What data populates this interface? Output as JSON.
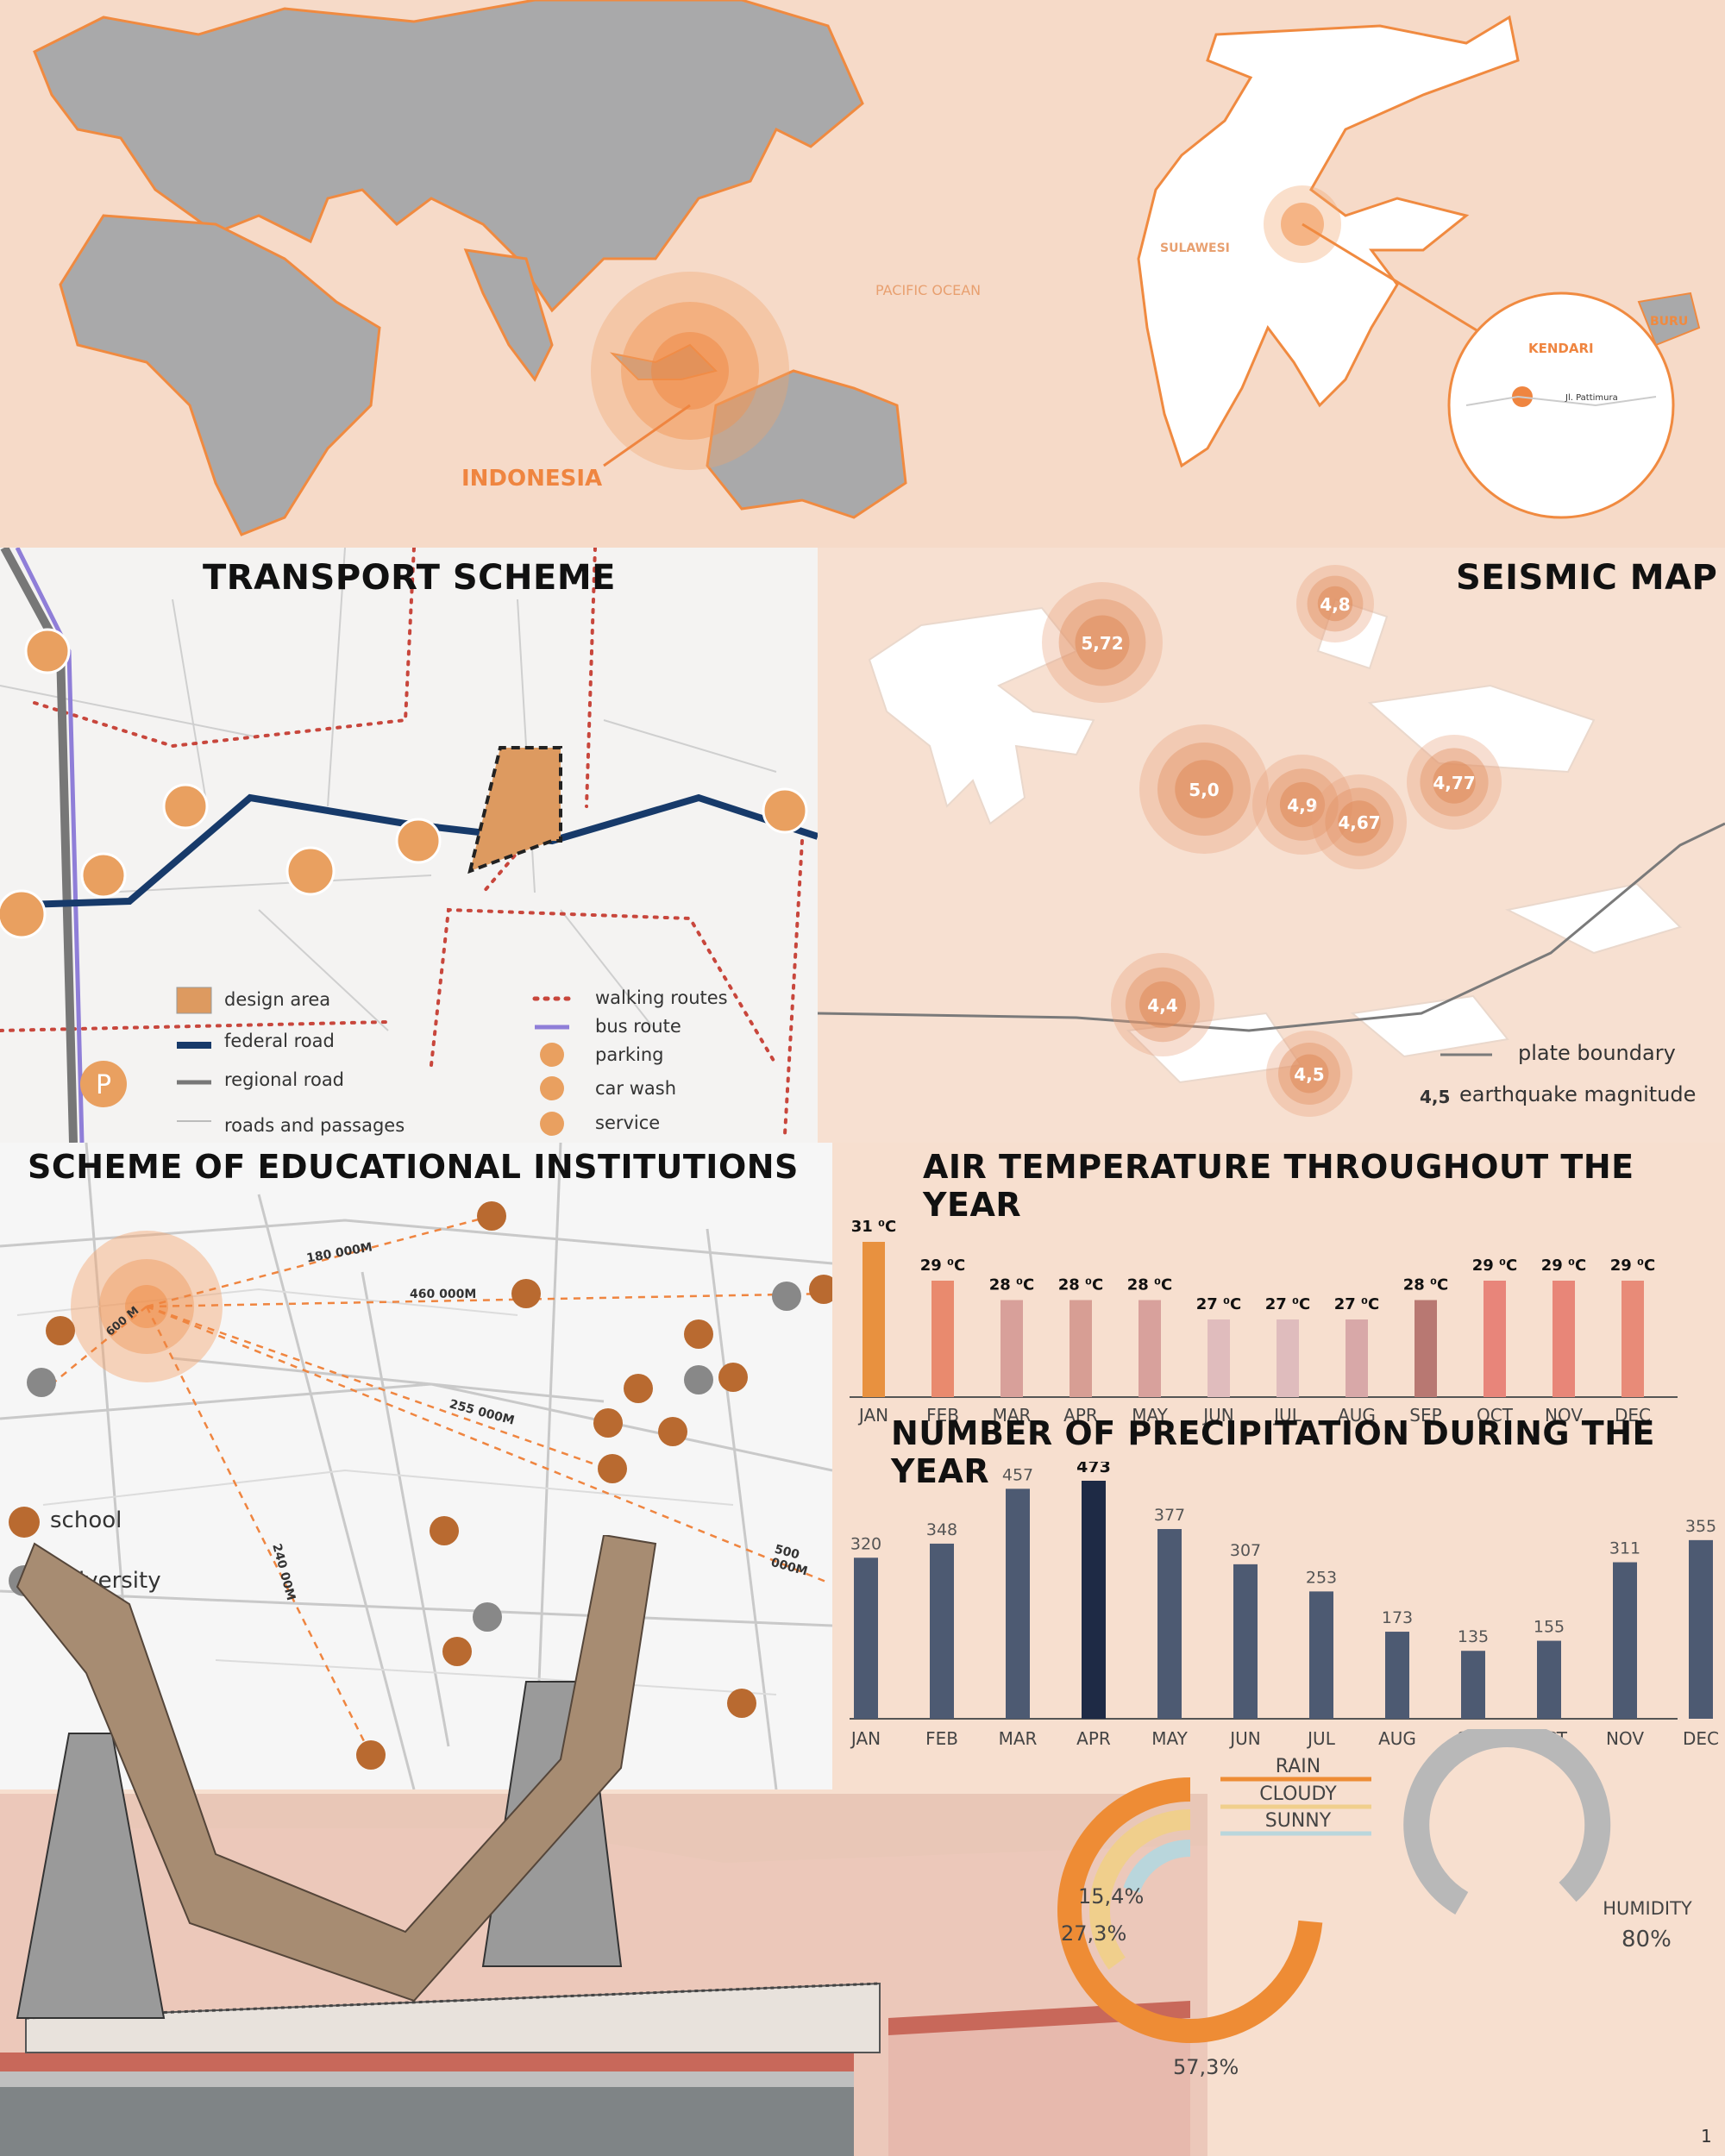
{
  "world_map": {
    "labels": {
      "indonesia": "INDONESIA",
      "pacific": "PACIFIC OCEAN",
      "sulawesi": "SULAWESI",
      "buru": "BURU",
      "kendari": "KENDARI",
      "street": "Jl. Pattimura"
    }
  },
  "transport": {
    "title": "TRANSPORT SCHEME",
    "legend": {
      "design_area": "design area",
      "federal_road": "federal road",
      "regional_road": "regional road",
      "roads": "roads and passages",
      "walking": "walking routes",
      "bus": "bus route",
      "parking": "parking",
      "car_wash": "car wash",
      "service": "service"
    },
    "parking_glyph": "P"
  },
  "seismic": {
    "title": "SEISMIC MAP",
    "quakes": [
      "5,72",
      "4,8",
      "5,0",
      "4,9",
      "4,77",
      "4,67",
      "4,4",
      "4,5"
    ],
    "legend": {
      "plate": "plate boundary",
      "sample": "4,5",
      "magnitude": "earthquake magnitude"
    }
  },
  "education": {
    "title": "SCHEME OF EDUCATIONAL INSTITUTIONS",
    "distances": [
      "180 000M",
      "460 000M",
      "600 M",
      "255 000M",
      "500 000M",
      "240 00M"
    ],
    "legend": {
      "school": "school",
      "university": "university"
    }
  },
  "temperature": {
    "title": "AIR TEMPERATURE THROUGHOUT THE YEAR",
    "colors": [
      "#e8913f",
      "#e98a6e",
      "#d8a09a",
      "#d79e94",
      "#d8a19c",
      "#e0bcbd",
      "#dfbcbd",
      "#d8a8a8",
      "#b87872",
      "#e8857a",
      "#e88678",
      "#e88b78"
    ]
  },
  "precipitation": {
    "title": "NUMBER OF PRECIPITATION DURING THE YEAR"
  },
  "chart_data": [
    {
      "type": "bar",
      "title": "AIR TEMPERATURE THROUGHOUT THE YEAR",
      "categories": [
        "JAN",
        "FEB",
        "MAR",
        "APR",
        "MAY",
        "JUN",
        "JUL",
        "AUG",
        "SEP",
        "OCT",
        "NOV",
        "DEC"
      ],
      "values": [
        31,
        29,
        28,
        28,
        28,
        27,
        27,
        27,
        28,
        29,
        29,
        29
      ],
      "data_labels": [
        "31 ⁰C",
        "29 ⁰C",
        "28 ⁰C",
        "28 ⁰C",
        "28 ⁰C",
        "27 ⁰C",
        "27 ⁰C",
        "27 ⁰C",
        "28 ⁰C",
        "29 ⁰C",
        "29 ⁰C",
        "29 ⁰C"
      ],
      "ylim": [
        23,
        31
      ]
    },
    {
      "type": "bar",
      "title": "NUMBER OF PRECIPITATION DURING THE YEAR",
      "categories": [
        "JAN",
        "FEB",
        "MAR",
        "APR",
        "MAY",
        "JUN",
        "JUL",
        "AUG",
        "SEP",
        "OCT",
        "NOV",
        "DEC"
      ],
      "values": [
        320,
        348,
        457,
        473,
        377,
        307,
        253,
        173,
        135,
        155,
        311,
        355
      ],
      "ylim": [
        0,
        473
      ]
    },
    {
      "type": "pie",
      "labels": [
        "RAIN",
        "CLOUDY",
        "SUNNY"
      ],
      "values": [
        57.3,
        27.3,
        15.4
      ],
      "value_labels": [
        "57,3%",
        "27,3%",
        "15,4%"
      ],
      "colors": [
        "#ee8c35",
        "#f0cf8c",
        "#b9d6dc"
      ]
    },
    {
      "type": "pie",
      "labels": [
        "HUMIDITY"
      ],
      "values": [
        80
      ],
      "value_labels": [
        "80%"
      ],
      "colors": [
        "#b8b8b8"
      ]
    }
  ],
  "page_number": "1"
}
